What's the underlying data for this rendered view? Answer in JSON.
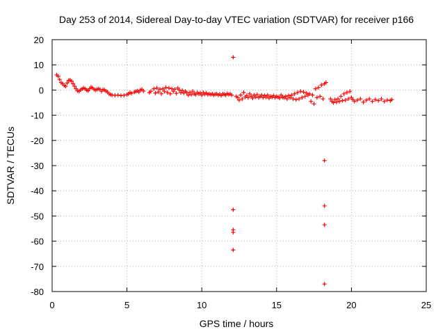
{
  "chart_data": {
    "type": "scatter",
    "title": "Day 253 of 2014, Sidereal Day-to-day VTEC variation (SDTVAR) for receiver p166",
    "xlabel": "GPS time / hours",
    "ylabel": "SDTVAR / TECUs",
    "xlim": [
      0,
      25
    ],
    "ylim": [
      -80,
      20
    ],
    "xticks": [
      "0",
      "5",
      "10",
      "15",
      "20",
      "25"
    ],
    "yticks": [
      "20",
      "10",
      "0",
      "-10",
      "-20",
      "-30",
      "-40",
      "-50",
      "-60",
      "-70",
      "-80"
    ],
    "grid": true,
    "marker": "+",
    "series_color": "#ff0000",
    "series": [
      {
        "name": "SDTVAR",
        "points": [
          [
            0.3,
            6.0
          ],
          [
            0.4,
            5.5
          ],
          [
            0.5,
            4.2
          ],
          [
            0.6,
            3.0
          ],
          [
            0.7,
            2.5
          ],
          [
            0.8,
            1.8
          ],
          [
            0.9,
            1.5
          ],
          [
            1.0,
            2.8
          ],
          [
            1.1,
            3.8
          ],
          [
            1.2,
            4.0
          ],
          [
            1.3,
            3.5
          ],
          [
            1.4,
            2.5
          ],
          [
            1.5,
            1.5
          ],
          [
            1.6,
            0.5
          ],
          [
            1.7,
            -0.3
          ],
          [
            1.8,
            -0.5
          ],
          [
            1.9,
            0.0
          ],
          [
            2.0,
            0.5
          ],
          [
            2.1,
            0.8
          ],
          [
            2.2,
            0.5
          ],
          [
            2.3,
            0.0
          ],
          [
            2.4,
            -0.3
          ],
          [
            2.5,
            0.5
          ],
          [
            2.6,
            1.2
          ],
          [
            2.7,
            0.8
          ],
          [
            2.8,
            0.3
          ],
          [
            2.9,
            0.0
          ],
          [
            3.0,
            0.2
          ],
          [
            3.1,
            0.5
          ],
          [
            3.2,
            0.3
          ],
          [
            3.3,
            -0.5
          ],
          [
            3.4,
            0.2
          ],
          [
            3.5,
            0.0
          ],
          [
            3.6,
            -0.4
          ],
          [
            3.7,
            -0.8
          ],
          [
            3.8,
            -1.5
          ],
          [
            3.9,
            -1.8
          ],
          [
            4.0,
            -2.0
          ],
          [
            4.2,
            -2.1
          ],
          [
            4.4,
            -2.0
          ],
          [
            4.6,
            -2.2
          ],
          [
            4.8,
            -2.1
          ],
          [
            5.0,
            -1.8
          ],
          [
            5.1,
            -1.5
          ],
          [
            5.2,
            -1.0
          ],
          [
            5.3,
            -1.3
          ],
          [
            5.5,
            -0.8
          ],
          [
            5.6,
            -0.5
          ],
          [
            5.7,
            -0.3
          ],
          [
            5.8,
            -0.8
          ],
          [
            5.9,
            0.0
          ],
          [
            6.0,
            0.3
          ],
          [
            6.1,
            -0.4
          ],
          [
            6.5,
            -1.0
          ],
          [
            6.6,
            -0.5
          ],
          [
            6.8,
            0.5
          ],
          [
            6.9,
            -1.2
          ],
          [
            7.0,
            0.8
          ],
          [
            7.1,
            -0.8
          ],
          [
            7.2,
            0.3
          ],
          [
            7.3,
            -1.5
          ],
          [
            7.4,
            0.5
          ],
          [
            7.5,
            -0.5
          ],
          [
            7.6,
            1.0
          ],
          [
            7.7,
            -1.0
          ],
          [
            7.8,
            0.8
          ],
          [
            7.9,
            -1.5
          ],
          [
            8.0,
            0.5
          ],
          [
            8.1,
            -0.5
          ],
          [
            8.2,
            0.3
          ],
          [
            8.3,
            -1.3
          ],
          [
            8.4,
            0.8
          ],
          [
            8.5,
            0.0
          ],
          [
            8.6,
            -1.0
          ],
          [
            8.7,
            -0.2
          ],
          [
            8.8,
            -1.2
          ],
          [
            8.9,
            -0.5
          ],
          [
            9.0,
            -1.0
          ],
          [
            9.1,
            -2.0
          ],
          [
            9.2,
            -1.0
          ],
          [
            9.3,
            -1.8
          ],
          [
            9.4,
            -0.5
          ],
          [
            9.5,
            -1.5
          ],
          [
            9.6,
            -1.8
          ],
          [
            9.7,
            -1.0
          ],
          [
            9.8,
            -1.5
          ],
          [
            9.9,
            -1.2
          ],
          [
            10.0,
            -2.0
          ],
          [
            10.1,
            -1.0
          ],
          [
            10.2,
            -1.6
          ],
          [
            10.3,
            -1.2
          ],
          [
            10.4,
            -1.8
          ],
          [
            10.5,
            -1.5
          ],
          [
            10.6,
            -1.8
          ],
          [
            10.7,
            -1.5
          ],
          [
            10.8,
            -2.0
          ],
          [
            10.9,
            -1.6
          ],
          [
            11.0,
            -1.5
          ],
          [
            11.1,
            -2.0
          ],
          [
            11.2,
            -1.6
          ],
          [
            11.3,
            -2.2
          ],
          [
            11.4,
            -1.5
          ],
          [
            11.5,
            -1.7
          ],
          [
            11.6,
            -2.0
          ],
          [
            11.7,
            -1.4
          ],
          [
            11.8,
            -1.8
          ],
          [
            11.9,
            -1.5
          ],
          [
            12.0,
            -2.0
          ],
          [
            12.3,
            -2.5
          ],
          [
            12.4,
            -3.0
          ],
          [
            12.5,
            -4.0
          ],
          [
            12.6,
            -2.0
          ],
          [
            12.7,
            -3.5
          ],
          [
            12.8,
            -1.0
          ],
          [
            12.9,
            -2.8
          ],
          [
            13.0,
            -2.2
          ],
          [
            13.1,
            -3.0
          ],
          [
            13.2,
            -1.5
          ],
          [
            13.3,
            -2.5
          ],
          [
            13.4,
            -3.2
          ],
          [
            13.5,
            -2.0
          ],
          [
            13.6,
            -2.8
          ],
          [
            13.7,
            -1.8
          ],
          [
            13.8,
            -3.0
          ],
          [
            13.9,
            -2.5
          ],
          [
            14.0,
            -2.0
          ],
          [
            14.1,
            -3.0
          ],
          [
            14.2,
            -2.2
          ],
          [
            14.3,
            -2.8
          ],
          [
            14.4,
            -2.0
          ],
          [
            14.5,
            -3.2
          ],
          [
            14.6,
            -2.5
          ],
          [
            14.7,
            -2.8
          ],
          [
            14.8,
            -2.2
          ],
          [
            14.9,
            -3.0
          ],
          [
            15.0,
            -2.5
          ],
          [
            15.1,
            -2.8
          ],
          [
            15.2,
            -3.2
          ],
          [
            15.3,
            -2.0
          ],
          [
            15.4,
            -2.8
          ],
          [
            15.5,
            -3.0
          ],
          [
            15.6,
            -2.5
          ],
          [
            15.7,
            -3.5
          ],
          [
            15.8,
            -2.2
          ],
          [
            15.9,
            -3.0
          ],
          [
            16.0,
            -2.0
          ],
          [
            16.1,
            -3.5
          ],
          [
            16.2,
            -1.5
          ],
          [
            16.3,
            -3.8
          ],
          [
            16.4,
            -1.0
          ],
          [
            16.5,
            -3.5
          ],
          [
            16.6,
            -0.5
          ],
          [
            16.7,
            -3.0
          ],
          [
            16.8,
            -0.8
          ],
          [
            16.9,
            -2.5
          ],
          [
            17.0,
            -1.2
          ],
          [
            17.1,
            -2.0
          ],
          [
            17.2,
            -1.5
          ],
          [
            17.3,
            -4.5
          ],
          [
            17.4,
            -2.0
          ],
          [
            17.5,
            -5.5
          ],
          [
            17.6,
            0.5
          ],
          [
            17.7,
            -3.0
          ],
          [
            17.8,
            1.0
          ],
          [
            17.9,
            -2.5
          ],
          [
            18.0,
            2.0
          ],
          [
            18.1,
            -3.5
          ],
          [
            18.2,
            2.5
          ],
          [
            18.3,
            3.0
          ],
          [
            18.6,
            -3.5
          ],
          [
            18.7,
            -4.5
          ],
          [
            18.8,
            -5.0
          ],
          [
            18.9,
            -3.8
          ],
          [
            19.0,
            -4.8
          ],
          [
            19.1,
            -3.5
          ],
          [
            19.2,
            -4.5
          ],
          [
            19.3,
            -2.5
          ],
          [
            19.4,
            -4.2
          ],
          [
            19.5,
            -1.5
          ],
          [
            19.6,
            -4.0
          ],
          [
            19.7,
            -1.0
          ],
          [
            19.8,
            -3.5
          ],
          [
            19.9,
            -0.5
          ],
          [
            20.0,
            -3.0
          ],
          [
            20.1,
            -3.8
          ],
          [
            20.2,
            -4.5
          ],
          [
            20.4,
            -4.0
          ],
          [
            20.6,
            -3.5
          ],
          [
            20.8,
            -4.8
          ],
          [
            21.0,
            -4.0
          ],
          [
            21.2,
            -3.5
          ],
          [
            21.4,
            -4.5
          ],
          [
            21.6,
            -3.8
          ],
          [
            21.8,
            -4.2
          ],
          [
            22.0,
            -3.5
          ],
          [
            22.2,
            -4.5
          ],
          [
            22.4,
            -4.0
          ],
          [
            22.6,
            -4.2
          ],
          [
            22.7,
            -3.8
          ],
          [
            12.1,
            13.0
          ],
          [
            12.1,
            -47.5
          ],
          [
            12.1,
            -55.5
          ],
          [
            12.1,
            -56.5
          ],
          [
            12.1,
            -63.5
          ],
          [
            18.2,
            -28.0
          ],
          [
            18.2,
            -46.0
          ],
          [
            18.2,
            -53.5
          ],
          [
            18.2,
            -77.0
          ]
        ]
      }
    ]
  }
}
